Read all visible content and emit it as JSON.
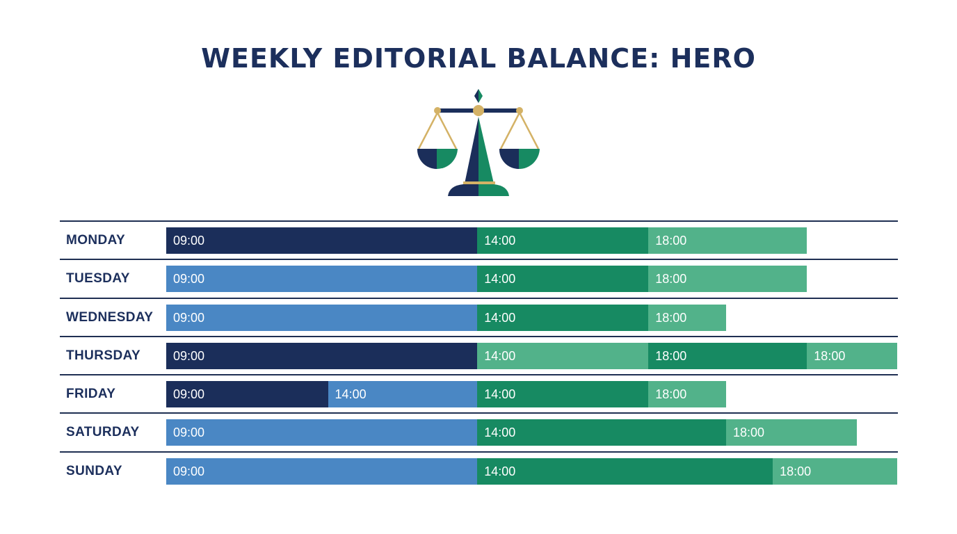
{
  "title": "WEEKLY EDITORIAL BALANCE: HERO",
  "icon": "scales-of-justice-icon",
  "colors": {
    "navy": "#1b2e5a",
    "blue": "#4a87c4",
    "green": "#178a62",
    "light_green": "#52b28a",
    "title": "#1c2f5c"
  },
  "chart_data": {
    "type": "bar",
    "orientation": "horizontal",
    "stacked": true,
    "x_unit": "hours",
    "categories": [
      "MONDAY",
      "TUESDAY",
      "WEDNESDAY",
      "THURSDAY",
      "FRIDAY",
      "SATURDAY",
      "SUNDAY"
    ],
    "rows": [
      {
        "day": "MONDAY",
        "segments": [
          {
            "label": "09:00",
            "start": 9,
            "end": 14,
            "color": "#1b2e5a"
          },
          {
            "label": "14:00",
            "start": 14,
            "end": 16.75,
            "color": "#178a62"
          },
          {
            "label": "18:00",
            "start": 16.75,
            "end": 19.3,
            "color": "#52b28a"
          }
        ]
      },
      {
        "day": "TUESDAY",
        "segments": [
          {
            "label": "09:00",
            "start": 9,
            "end": 14,
            "color": "#4a87c4"
          },
          {
            "label": "14:00",
            "start": 14,
            "end": 16.75,
            "color": "#178a62"
          },
          {
            "label": "18:00",
            "start": 16.75,
            "end": 19.3,
            "color": "#52b28a"
          }
        ]
      },
      {
        "day": "WEDNESDAY",
        "segments": [
          {
            "label": "09:00",
            "start": 9,
            "end": 14,
            "color": "#4a87c4"
          },
          {
            "label": "14:00",
            "start": 14,
            "end": 16.75,
            "color": "#178a62"
          },
          {
            "label": "18:00",
            "start": 16.75,
            "end": 18.0,
            "color": "#52b28a"
          }
        ]
      },
      {
        "day": "THURSDAY",
        "segments": [
          {
            "label": "09:00",
            "start": 9,
            "end": 14,
            "color": "#1b2e5a"
          },
          {
            "label": "14:00",
            "start": 14,
            "end": 16.75,
            "color": "#52b28a"
          },
          {
            "label": "18:00",
            "start": 16.75,
            "end": 19.3,
            "color": "#178a62"
          },
          {
            "label": "18:00",
            "start": 19.3,
            "end": 20.75,
            "color": "#52b28a"
          }
        ]
      },
      {
        "day": "FRIDAY",
        "segments": [
          {
            "label": "09:00",
            "start": 9,
            "end": 11.6,
            "color": "#1b2e5a"
          },
          {
            "label": "14:00",
            "start": 11.6,
            "end": 14,
            "color": "#4a87c4"
          },
          {
            "label": "14:00",
            "start": 14,
            "end": 16.75,
            "color": "#178a62"
          },
          {
            "label": "18:00",
            "start": 16.75,
            "end": 18.0,
            "color": "#52b28a"
          }
        ]
      },
      {
        "day": "SATURDAY",
        "segments": [
          {
            "label": "09:00",
            "start": 9,
            "end": 14,
            "color": "#4a87c4"
          },
          {
            "label": "14:00",
            "start": 14,
            "end": 18.0,
            "color": "#178a62"
          },
          {
            "label": "18:00",
            "start": 18.0,
            "end": 20.1,
            "color": "#52b28a"
          }
        ]
      },
      {
        "day": "SUNDAY",
        "segments": [
          {
            "label": "09:00",
            "start": 9,
            "end": 14,
            "color": "#4a87c4"
          },
          {
            "label": "14:00",
            "start": 14,
            "end": 18.75,
            "color": "#178a62"
          },
          {
            "label": "18:00",
            "start": 18.75,
            "end": 20.75,
            "color": "#52b28a"
          }
        ]
      }
    ],
    "xlim": [
      9,
      20.75
    ],
    "grid": false,
    "legend": "none"
  }
}
